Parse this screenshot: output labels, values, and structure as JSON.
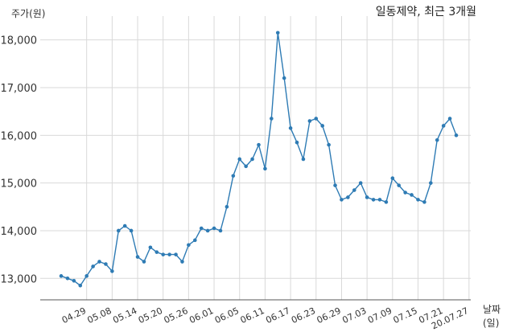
{
  "title": "일동제약, 최근 3개월",
  "y_unit_label": "주가(원)",
  "x_unit_label": "날짜(일)",
  "colors": {
    "line": "#2e7bb4",
    "grid": "#d9d9d9",
    "axis": "#555555"
  },
  "chart_data": {
    "type": "line",
    "title": "일동제약, 최근 3개월",
    "xlabel": "날짜(일)",
    "ylabel": "주가(원)",
    "ylim": [
      12550,
      18500
    ],
    "y_ticks": [
      13000,
      14000,
      15000,
      16000,
      17000,
      18000
    ],
    "y_tick_labels": [
      "13,000",
      "14,000",
      "15,000",
      "16,000",
      "17,000",
      "18,000"
    ],
    "x_tick_labels": [
      "04.29",
      "05.08",
      "05.14",
      "05.20",
      "05.26",
      "06.01",
      "06.05",
      "06.11",
      "06.17",
      "06.23",
      "06.29",
      "07.03",
      "07.09",
      "07.15",
      "07.21",
      "20.07.27"
    ],
    "x_tick_positions": [
      4,
      8,
      12,
      16,
      20,
      24,
      28,
      32,
      36,
      40,
      44,
      48,
      52,
      56,
      60,
      64
    ],
    "grid": true,
    "series": [
      {
        "values": [
          13050,
          13000,
          12950,
          12850,
          13050,
          13250,
          13350,
          13300,
          13150,
          14000,
          14100,
          14000,
          13450,
          13350,
          13650,
          13550,
          13500,
          13500,
          13500,
          13350,
          13700,
          13800,
          14050,
          14000,
          14050,
          14000,
          14500,
          15150,
          15500,
          15350,
          15500,
          15800,
          15300,
          16350,
          18150,
          17200,
          16150,
          15850,
          15500,
          16300,
          16350,
          16200,
          15800,
          14950,
          14650,
          14700,
          14850,
          15000,
          14700,
          14650,
          14650,
          14600,
          15100,
          14950,
          14800,
          14750,
          14650,
          14600,
          15000,
          15900,
          16200,
          16350,
          16000
        ]
      }
    ]
  }
}
